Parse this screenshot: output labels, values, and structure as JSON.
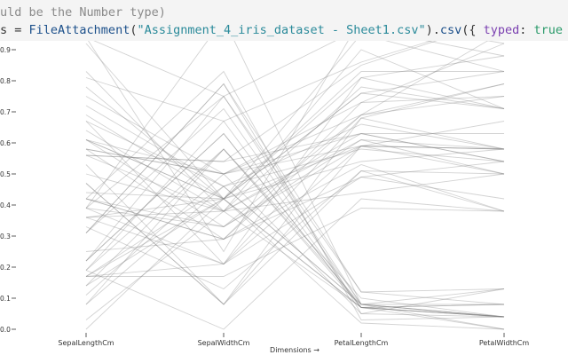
{
  "code": {
    "comment_line": "uld be the Number type)",
    "assign_var": "s",
    "assign_op": " = ",
    "func": "FileAttachment",
    "paren_open": "(",
    "filename": "\"Assignment_4_iris_dataset - Sheet1.csv\"",
    "method_open": ").",
    "method": "csv",
    "brace_open": "({ ",
    "option_key": "typed",
    "colon": ": ",
    "option_value": "true",
    "brace_close": " })"
  },
  "chart_data": {
    "type": "parallel-coordinates",
    "xlabel": "Dimensions →",
    "dimensions": [
      "SepalLengthCm",
      "SepalWidthCm",
      "PetalLengthCm",
      "PetalWidthCm"
    ],
    "y_ticks": [
      "0.0",
      "0.1",
      "0.2",
      "0.3",
      "0.4",
      "0.5",
      "0.6",
      "0.7",
      "0.8",
      "0.9"
    ],
    "ylim": [
      0,
      1
    ],
    "line_color": "#808080",
    "rows": [
      [
        0.22,
        0.63,
        0.07,
        0.04
      ],
      [
        0.17,
        0.42,
        0.07,
        0.04
      ],
      [
        0.11,
        0.5,
        0.05,
        0.04
      ],
      [
        0.08,
        0.46,
        0.08,
        0.04
      ],
      [
        0.19,
        0.67,
        0.07,
        0.04
      ],
      [
        0.31,
        0.79,
        0.12,
        0.13
      ],
      [
        0.08,
        0.58,
        0.07,
        0.08
      ],
      [
        0.19,
        0.58,
        0.08,
        0.04
      ],
      [
        0.03,
        0.38,
        0.07,
        0.04
      ],
      [
        0.17,
        0.46,
        0.08,
        0.0
      ],
      [
        0.31,
        0.71,
        0.08,
        0.04
      ],
      [
        0.14,
        0.58,
        0.1,
        0.04
      ],
      [
        0.14,
        0.42,
        0.07,
        0.0
      ],
      [
        0.0,
        0.42,
        0.02,
        0.0
      ],
      [
        0.42,
        0.83,
        0.03,
        0.04
      ],
      [
        0.39,
        1.0,
        0.08,
        0.13
      ],
      [
        0.31,
        0.79,
        0.05,
        0.13
      ],
      [
        0.22,
        0.63,
        0.07,
        0.08
      ],
      [
        0.39,
        0.75,
        0.12,
        0.08
      ],
      [
        0.22,
        0.75,
        0.08,
        0.08
      ],
      [
        0.75,
        0.5,
        0.63,
        0.54
      ],
      [
        0.58,
        0.5,
        0.59,
        0.58
      ],
      [
        0.72,
        0.46,
        0.66,
        0.58
      ],
      [
        0.33,
        0.13,
        0.51,
        0.5
      ],
      [
        0.61,
        0.33,
        0.61,
        0.58
      ],
      [
        0.39,
        0.33,
        0.59,
        0.5
      ],
      [
        0.56,
        0.54,
        0.63,
        0.63
      ],
      [
        0.17,
        0.17,
        0.39,
        0.38
      ],
      [
        0.64,
        0.38,
        0.61,
        0.5
      ],
      [
        0.25,
        0.29,
        0.49,
        0.54
      ],
      [
        0.19,
        0.0,
        0.42,
        0.38
      ],
      [
        0.44,
        0.42,
        0.54,
        0.58
      ],
      [
        0.47,
        0.08,
        0.51,
        0.38
      ],
      [
        0.5,
        0.38,
        0.63,
        0.54
      ],
      [
        0.36,
        0.38,
        0.44,
        0.5
      ],
      [
        0.67,
        0.46,
        0.58,
        0.54
      ],
      [
        0.36,
        0.42,
        0.59,
        0.58
      ],
      [
        0.42,
        0.29,
        0.53,
        0.38
      ],
      [
        0.53,
        0.08,
        0.59,
        0.58
      ],
      [
        0.36,
        0.21,
        0.49,
        0.42
      ],
      [
        0.56,
        0.54,
        0.85,
        1.0
      ],
      [
        0.42,
        0.29,
        0.69,
        0.75
      ],
      [
        0.78,
        0.42,
        0.83,
        0.83
      ],
      [
        0.56,
        0.38,
        0.78,
        0.71
      ],
      [
        0.61,
        0.42,
        0.81,
        0.88
      ],
      [
        0.92,
        0.42,
        0.95,
        0.83
      ],
      [
        0.17,
        0.21,
        0.59,
        0.67
      ],
      [
        0.83,
        0.38,
        0.9,
        0.71
      ],
      [
        0.67,
        0.21,
        0.81,
        0.71
      ],
      [
        0.81,
        0.67,
        0.86,
        1.0
      ],
      [
        0.61,
        0.5,
        0.69,
        0.79
      ],
      [
        0.58,
        0.29,
        0.73,
        0.75
      ],
      [
        0.69,
        0.42,
        0.76,
        0.83
      ],
      [
        0.39,
        0.21,
        0.68,
        0.79
      ],
      [
        0.42,
        0.33,
        0.69,
        0.96
      ],
      [
        0.58,
        0.5,
        0.73,
        0.92
      ],
      [
        0.61,
        0.42,
        0.76,
        0.71
      ],
      [
        0.94,
        0.75,
        0.97,
        0.88
      ],
      [
        0.94,
        0.25,
        1.0,
        0.92
      ],
      [
        0.47,
        0.08,
        0.68,
        0.58
      ]
    ]
  }
}
